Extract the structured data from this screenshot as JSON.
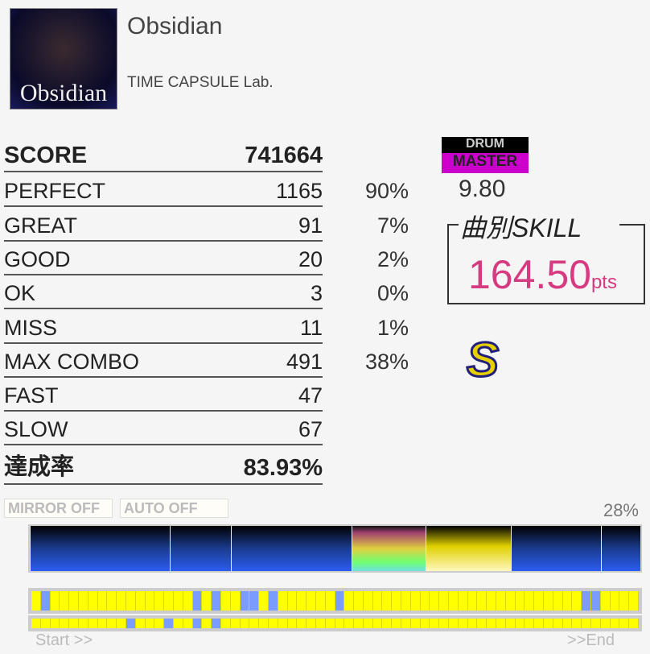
{
  "song": {
    "title": "Obsidian",
    "artist": "TIME CAPSULE Lab.",
    "jacket_text": "Obsidian"
  },
  "results": [
    {
      "label": "SCORE",
      "value": "741664",
      "pct": "",
      "bold": true
    },
    {
      "label": "PERFECT",
      "value": "1165",
      "pct": "90%"
    },
    {
      "label": "GREAT",
      "value": "91",
      "pct": "7%"
    },
    {
      "label": "GOOD",
      "value": "20",
      "pct": "2%"
    },
    {
      "label": "OK",
      "value": "3",
      "pct": "0%"
    },
    {
      "label": "MISS",
      "value": "11",
      "pct": "1%"
    },
    {
      "label": "MAX COMBO",
      "value": "491",
      "pct": "38%"
    },
    {
      "label": "FAST",
      "value": "47",
      "pct": ""
    },
    {
      "label": "SLOW",
      "value": "67",
      "pct": ""
    },
    {
      "label": "達成率",
      "value": "83.93%",
      "pct": "",
      "bold": true
    }
  ],
  "difficulty": {
    "instrument": "DRUM",
    "level_name": "MASTER",
    "level": "9.80",
    "color": "#cc00cc"
  },
  "skill": {
    "label": "曲別SKILL",
    "value": "164.50",
    "unit": "pts",
    "color": "#d63a80"
  },
  "rank": "S",
  "options": {
    "mirror": "MIRROR OFF",
    "auto": "AUTO OFF"
  },
  "progress": {
    "percent": "28%",
    "gauge_segments": [
      "blue",
      "blue",
      "blue",
      "rainbow",
      "yellow",
      "blue",
      "blue"
    ],
    "row1_blue_cells": [
      1,
      17,
      19,
      22,
      23,
      25,
      32,
      58,
      59
    ],
    "row2_blue_cells": [
      10,
      14,
      17,
      19
    ],
    "cell_count": 64,
    "start_label": "Start >>",
    "end_label": ">>End"
  }
}
